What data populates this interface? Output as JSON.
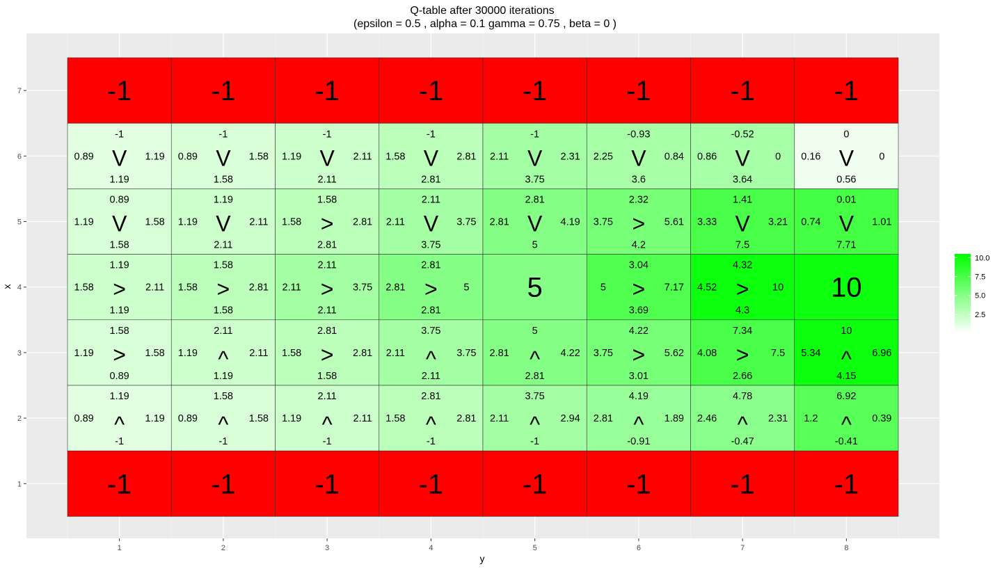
{
  "title_line1": "Q-table after  30000  iterations",
  "title_line2": "(epsilon =  0.5 , alpha =  0.1 gamma =  0.75 , beta =  0 )",
  "chart_data": {
    "type": "heatmap",
    "xlabel": "y",
    "ylabel": "x",
    "y_ticks": [
      "1",
      "2",
      "3",
      "4",
      "5",
      "6",
      "7",
      "8"
    ],
    "x_ticks": [
      "1",
      "2",
      "3",
      "4",
      "5",
      "6",
      "7"
    ],
    "legend": {
      "ticks": [
        "10.0",
        "7.5",
        "5.0",
        "2.5"
      ],
      "tick_values": [
        10,
        7.5,
        5,
        2.5
      ],
      "range": [
        0,
        10.5
      ],
      "low_color": "#ffffff",
      "high_color": "#00ff00",
      "placement": "right"
    },
    "terminal_color": "#ff0000",
    "rows": [
      {
        "x": 7,
        "cells": [
          {
            "y": 1,
            "value": -1,
            "label": "-1",
            "terminal": true
          },
          {
            "y": 2,
            "value": -1,
            "label": "-1",
            "terminal": true
          },
          {
            "y": 3,
            "value": -1,
            "label": "-1",
            "terminal": true
          },
          {
            "y": 4,
            "value": -1,
            "label": "-1",
            "terminal": true
          },
          {
            "y": 5,
            "value": -1,
            "label": "-1",
            "terminal": true
          },
          {
            "y": 6,
            "value": -1,
            "label": "-1",
            "terminal": true
          },
          {
            "y": 7,
            "value": -1,
            "label": "-1",
            "terminal": true
          },
          {
            "y": 8,
            "value": -1,
            "label": "-1",
            "terminal": true
          }
        ]
      },
      {
        "x": 6,
        "cells": [
          {
            "y": 1,
            "value": 1.19,
            "top": "-1",
            "left": "0.89",
            "right": "1.19",
            "bottom": "1.19",
            "arrow": "V"
          },
          {
            "y": 2,
            "value": 1.58,
            "top": "-1",
            "left": "0.89",
            "right": "1.58",
            "bottom": "1.58",
            "arrow": "V"
          },
          {
            "y": 3,
            "value": 2.11,
            "top": "-1",
            "left": "1.19",
            "right": "2.11",
            "bottom": "2.11",
            "arrow": "V"
          },
          {
            "y": 4,
            "value": 2.81,
            "top": "-1",
            "left": "1.58",
            "right": "2.81",
            "bottom": "2.81",
            "arrow": "V"
          },
          {
            "y": 5,
            "value": 3.75,
            "top": "-1",
            "left": "2.11",
            "right": "2.31",
            "bottom": "3.75",
            "arrow": "V"
          },
          {
            "y": 6,
            "value": 3.6,
            "top": "-0.93",
            "left": "2.25",
            "right": "0.84",
            "bottom": "3.6",
            "arrow": "V"
          },
          {
            "y": 7,
            "value": 3.64,
            "top": "-0.52",
            "left": "0.86",
            "right": "0",
            "bottom": "3.64",
            "arrow": "V"
          },
          {
            "y": 8,
            "value": 0.56,
            "top": "0",
            "left": "0.16",
            "right": "0",
            "bottom": "0.56",
            "arrow": "V"
          }
        ]
      },
      {
        "x": 5,
        "cells": [
          {
            "y": 1,
            "value": 1.58,
            "top": "0.89",
            "left": "1.19",
            "right": "1.58",
            "bottom": "1.58",
            "arrow": "V"
          },
          {
            "y": 2,
            "value": 2.11,
            "top": "1.19",
            "left": "1.19",
            "right": "2.11",
            "bottom": "2.11",
            "arrow": "V"
          },
          {
            "y": 3,
            "value": 2.81,
            "top": "1.58",
            "left": "1.58",
            "right": "2.81",
            "bottom": "2.81",
            "arrow": ">"
          },
          {
            "y": 4,
            "value": 3.75,
            "top": "2.11",
            "left": "2.11",
            "right": "3.75",
            "bottom": "3.75",
            "arrow": "V"
          },
          {
            "y": 5,
            "value": 5,
            "top": "2.81",
            "left": "2.81",
            "right": "4.19",
            "bottom": "5",
            "arrow": "V"
          },
          {
            "y": 6,
            "value": 5.61,
            "top": "2.32",
            "left": "3.75",
            "right": "5.61",
            "bottom": "4.2",
            "arrow": ">"
          },
          {
            "y": 7,
            "value": 7.5,
            "top": "1.41",
            "left": "3.33",
            "right": "3.21",
            "bottom": "7.5",
            "arrow": "V"
          },
          {
            "y": 8,
            "value": 7.71,
            "top": "0.01",
            "left": "0.74",
            "right": "1.01",
            "bottom": "7.71",
            "arrow": "V"
          }
        ]
      },
      {
        "x": 4,
        "cells": [
          {
            "y": 1,
            "value": 2.11,
            "top": "1.19",
            "left": "1.58",
            "right": "2.11",
            "bottom": "1.19",
            "arrow": ">"
          },
          {
            "y": 2,
            "value": 2.81,
            "top": "1.58",
            "left": "1.58",
            "right": "2.81",
            "bottom": "1.58",
            "arrow": ">"
          },
          {
            "y": 3,
            "value": 3.75,
            "top": "2.11",
            "left": "2.11",
            "right": "3.75",
            "bottom": "2.11",
            "arrow": ">"
          },
          {
            "y": 4,
            "value": 5,
            "top": "2.81",
            "left": "2.81",
            "right": "5",
            "bottom": "2.81",
            "arrow": ">"
          },
          {
            "y": 5,
            "value": 5,
            "label": "5",
            "terminal": true,
            "fill_by_value": true
          },
          {
            "y": 6,
            "value": 7.17,
            "top": "3.04",
            "left": "5",
            "right": "7.17",
            "bottom": "3.69",
            "arrow": ">"
          },
          {
            "y": 7,
            "value": 10,
            "top": "4.32",
            "left": "4.52",
            "right": "10",
            "bottom": "4.3",
            "arrow": ">"
          },
          {
            "y": 8,
            "value": 10,
            "label": "10",
            "terminal": true,
            "fill_by_value": true
          }
        ]
      },
      {
        "x": 3,
        "cells": [
          {
            "y": 1,
            "value": 1.58,
            "top": "1.58",
            "left": "1.19",
            "right": "1.58",
            "bottom": "0.89",
            "arrow": ">"
          },
          {
            "y": 2,
            "value": 2.11,
            "top": "2.11",
            "left": "1.19",
            "right": "2.11",
            "bottom": "1.19",
            "arrow": "^"
          },
          {
            "y": 3,
            "value": 2.81,
            "top": "2.81",
            "left": "1.58",
            "right": "2.81",
            "bottom": "1.58",
            "arrow": ">"
          },
          {
            "y": 4,
            "value": 3.75,
            "top": "3.75",
            "left": "2.11",
            "right": "3.75",
            "bottom": "2.11",
            "arrow": "^"
          },
          {
            "y": 5,
            "value": 5,
            "top": "5",
            "left": "2.81",
            "right": "4.22",
            "bottom": "2.81",
            "arrow": "^"
          },
          {
            "y": 6,
            "value": 5.62,
            "top": "4.22",
            "left": "3.75",
            "right": "5.62",
            "bottom": "3.01",
            "arrow": ">"
          },
          {
            "y": 7,
            "value": 7.5,
            "top": "7.34",
            "left": "4.08",
            "right": "7.5",
            "bottom": "2.66",
            "arrow": ">"
          },
          {
            "y": 8,
            "value": 10,
            "top": "10",
            "left": "5.34",
            "right": "6.96",
            "bottom": "4.15",
            "arrow": "^"
          }
        ]
      },
      {
        "x": 2,
        "cells": [
          {
            "y": 1,
            "value": 1.19,
            "top": "1.19",
            "left": "0.89",
            "right": "1.19",
            "bottom": "-1",
            "arrow": "^"
          },
          {
            "y": 2,
            "value": 1.58,
            "top": "1.58",
            "left": "0.89",
            "right": "1.58",
            "bottom": "-1",
            "arrow": "^"
          },
          {
            "y": 3,
            "value": 2.11,
            "top": "2.11",
            "left": "1.19",
            "right": "2.11",
            "bottom": "-1",
            "arrow": "^"
          },
          {
            "y": 4,
            "value": 2.81,
            "top": "2.81",
            "left": "1.58",
            "right": "2.81",
            "bottom": "-1",
            "arrow": "^"
          },
          {
            "y": 5,
            "value": 3.75,
            "top": "3.75",
            "left": "2.11",
            "right": "2.94",
            "bottom": "-1",
            "arrow": "^"
          },
          {
            "y": 6,
            "value": 4.19,
            "top": "4.19",
            "left": "2.81",
            "right": "1.89",
            "bottom": "-0.91",
            "arrow": "^"
          },
          {
            "y": 7,
            "value": 4.78,
            "top": "4.78",
            "left": "2.46",
            "right": "2.31",
            "bottom": "-0.47",
            "arrow": "^"
          },
          {
            "y": 8,
            "value": 6.92,
            "top": "6.92",
            "left": "1.2",
            "right": "0.39",
            "bottom": "-0.41",
            "arrow": "^"
          }
        ]
      },
      {
        "x": 1,
        "cells": [
          {
            "y": 1,
            "value": -1,
            "label": "-1",
            "terminal": true
          },
          {
            "y": 2,
            "value": -1,
            "label": "-1",
            "terminal": true
          },
          {
            "y": 3,
            "value": -1,
            "label": "-1",
            "terminal": true
          },
          {
            "y": 4,
            "value": -1,
            "label": "-1",
            "terminal": true
          },
          {
            "y": 5,
            "value": -1,
            "label": "-1",
            "terminal": true
          },
          {
            "y": 6,
            "value": -1,
            "label": "-1",
            "terminal": true
          },
          {
            "y": 7,
            "value": -1,
            "label": "-1",
            "terminal": true
          },
          {
            "y": 8,
            "value": -1,
            "label": "-1",
            "terminal": true
          }
        ]
      }
    ]
  }
}
